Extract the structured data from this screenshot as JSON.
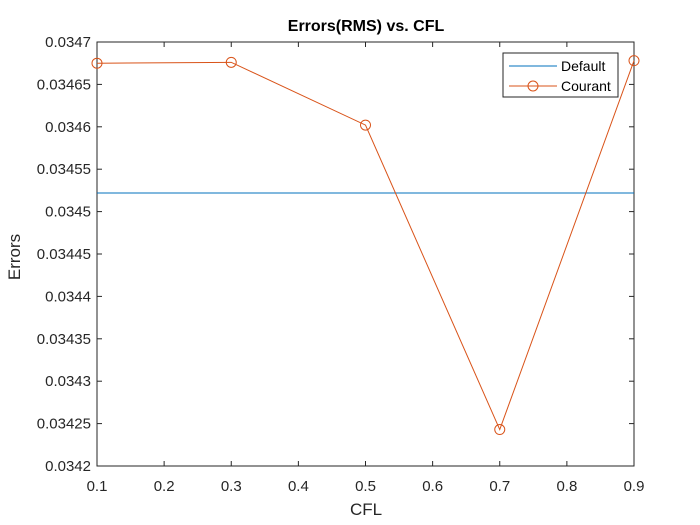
{
  "chart_data": {
    "type": "line",
    "title": "Errors(RMS) vs. CFL",
    "xlabel": "CFL",
    "ylabel": "Errors",
    "xlim": [
      0.1,
      0.9
    ],
    "ylim": [
      0.0342,
      0.0347
    ],
    "x_ticks": [
      0.1,
      0.2,
      0.3,
      0.4,
      0.5,
      0.6,
      0.7,
      0.8,
      0.9
    ],
    "x_tick_labels": [
      "0.1",
      "0.2",
      "0.3",
      "0.4",
      "0.5",
      "0.6",
      "0.7",
      "0.8",
      "0.9"
    ],
    "y_ticks": [
      0.0342,
      0.03425,
      0.0343,
      0.03435,
      0.0344,
      0.03445,
      0.0345,
      0.03455,
      0.0346,
      0.03465,
      0.0347
    ],
    "y_tick_labels": [
      "0.0342",
      "0.03425",
      "0.0343",
      "0.03435",
      "0.0344",
      "0.03445",
      "0.0345",
      "0.03455",
      "0.0346",
      "0.03465",
      "0.0347"
    ],
    "grid": false,
    "legend_position": "top-right",
    "series": [
      {
        "name": "Default",
        "color": "#0072BD",
        "marker": "none",
        "x": [
          0.1,
          0.9
        ],
        "y": [
          0.034522,
          0.034522
        ]
      },
      {
        "name": "Courant",
        "color": "#D95319",
        "marker": "circle",
        "x": [
          0.1,
          0.3,
          0.5,
          0.7,
          0.9
        ],
        "y": [
          0.034675,
          0.034676,
          0.034602,
          0.034243,
          0.034678
        ]
      }
    ]
  }
}
